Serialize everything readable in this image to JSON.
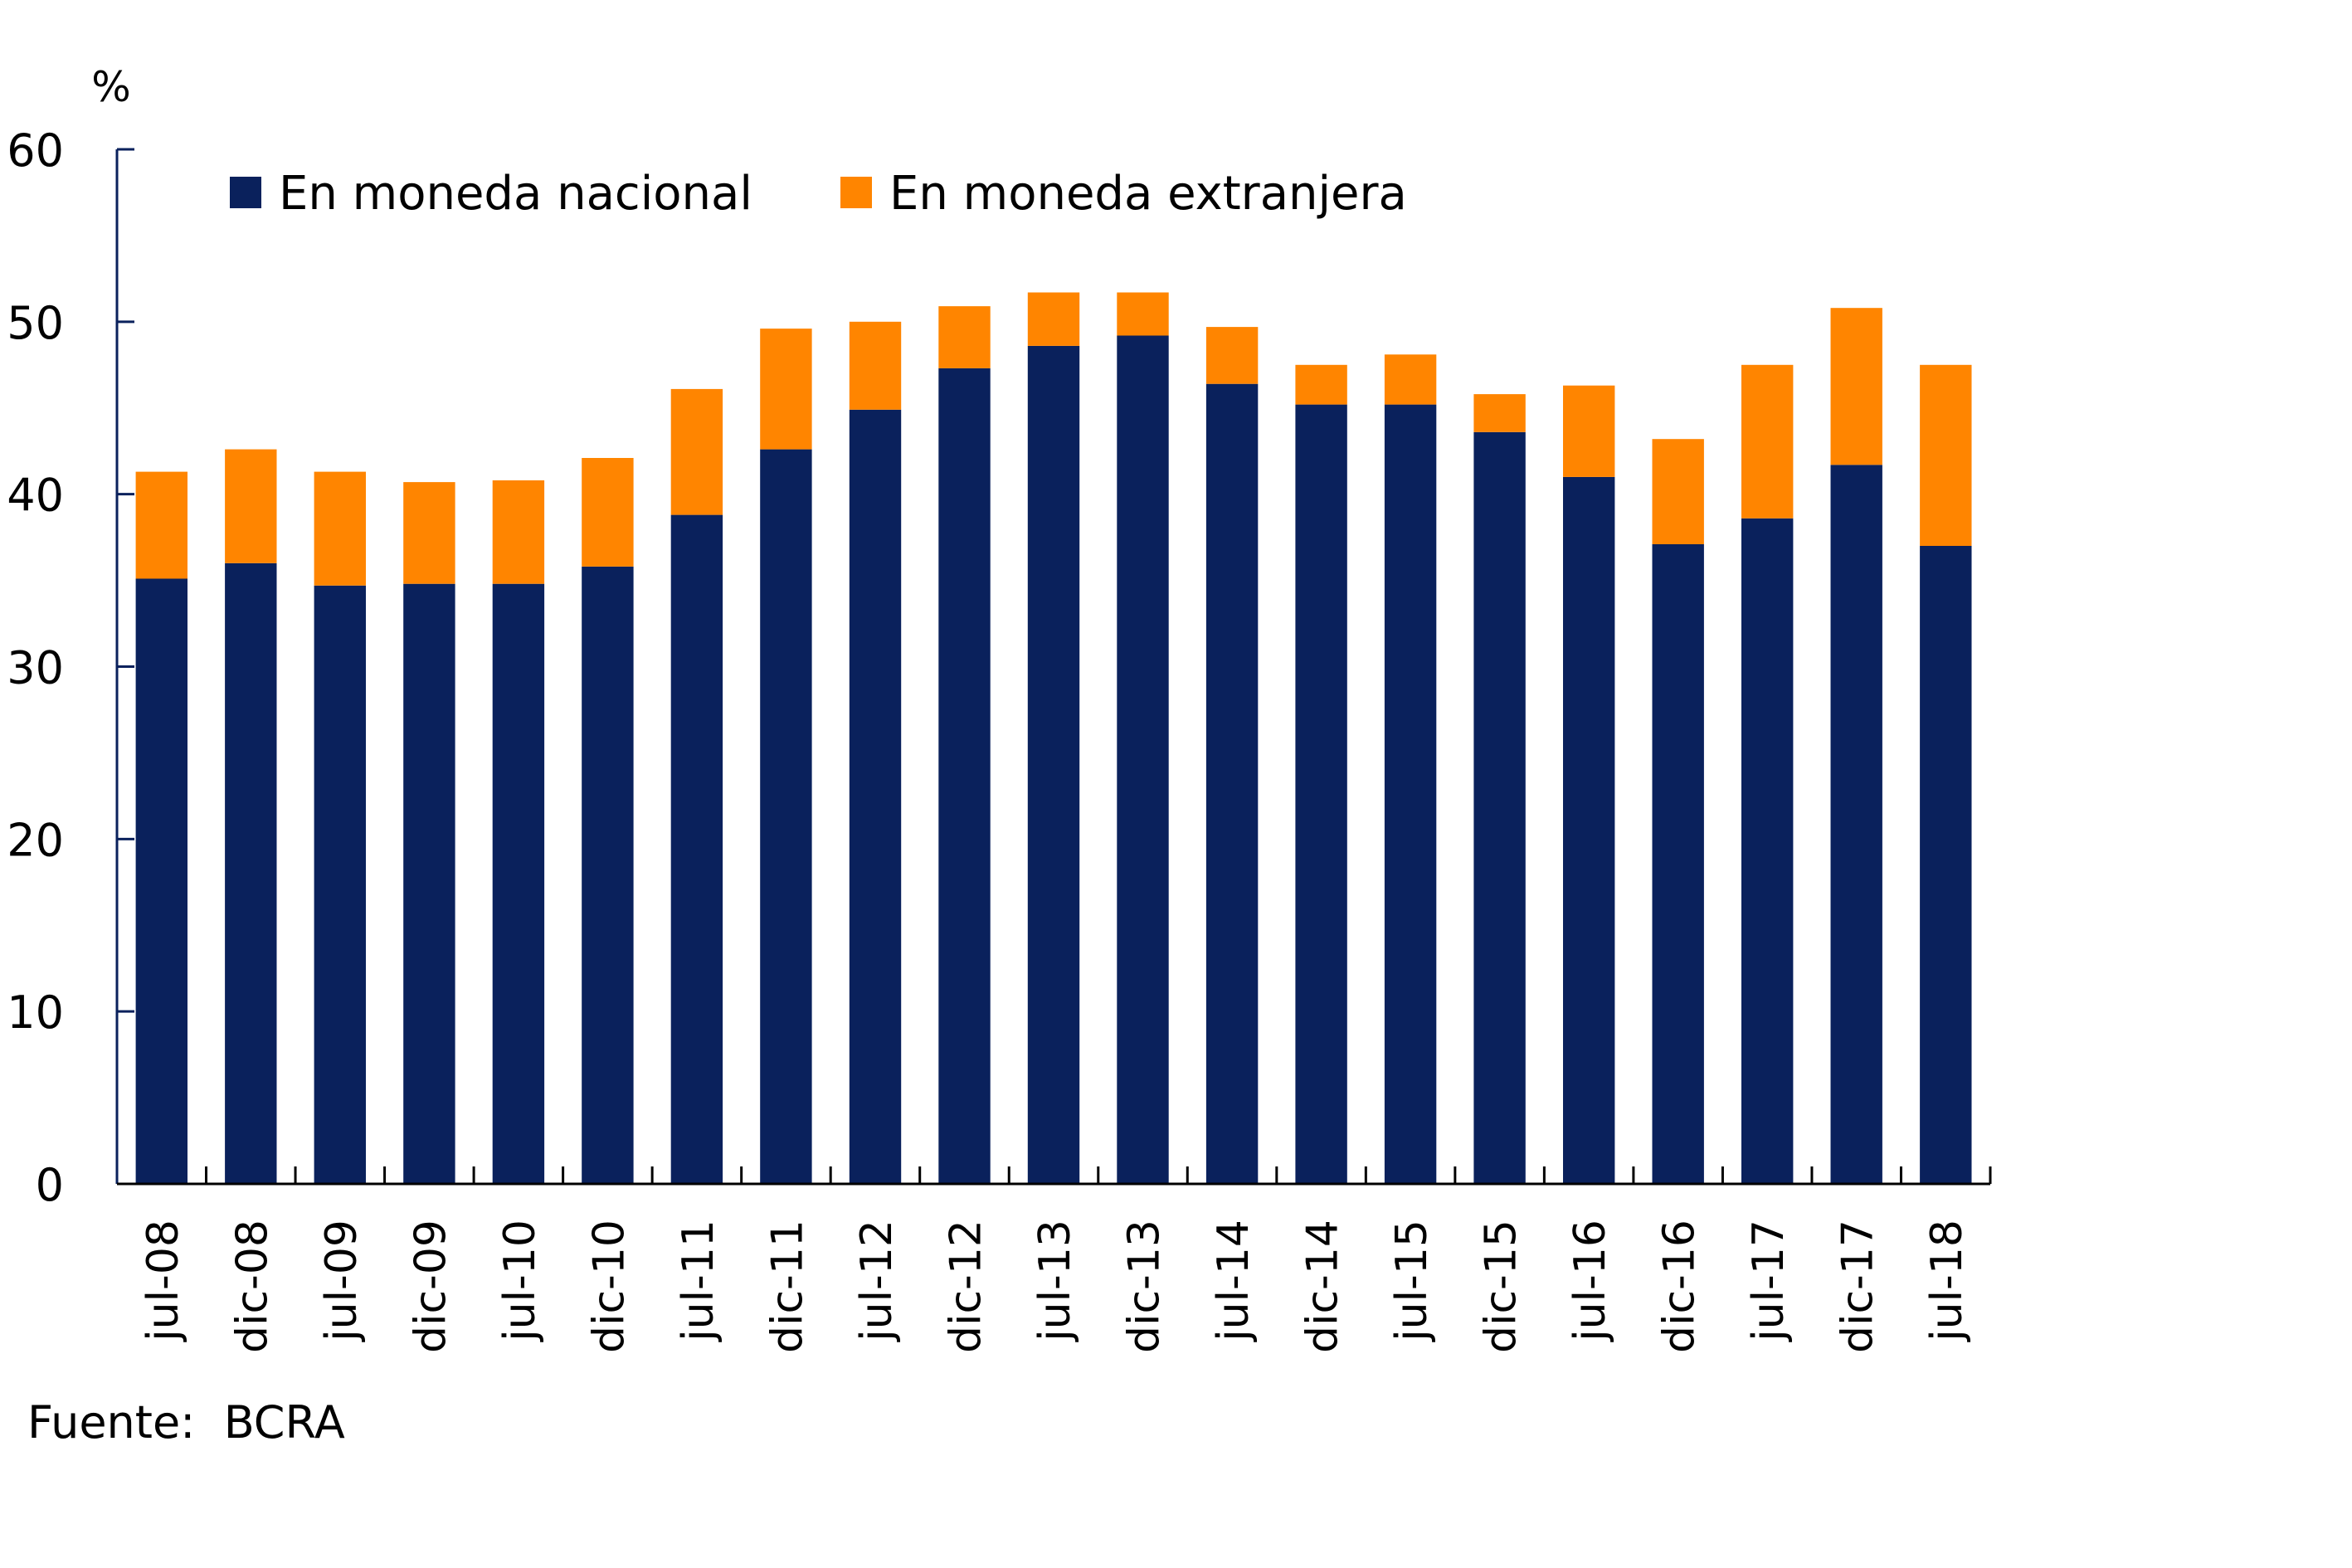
{
  "chart_data": {
    "type": "bar",
    "stacked": true,
    "title": "",
    "xlabel": "",
    "ylabel": "%",
    "ylim": [
      0,
      60
    ],
    "yticks": [
      0,
      10,
      20,
      30,
      40,
      50,
      60
    ],
    "grid": false,
    "legend_position": "top-left",
    "categories": [
      "jul-08",
      "dic-08",
      "jul-09",
      "dic-09",
      "jul-10",
      "dic-10",
      "jul-11",
      "dic-11",
      "jul-12",
      "dic-12",
      "jul-13",
      "dic-13",
      "jul-14",
      "dic-14",
      "jul-15",
      "dic-15",
      "jul-16",
      "dic-16",
      "jul-17",
      "dic-17",
      "jul-18"
    ],
    "series": [
      {
        "name": "En moneda nacional",
        "color": "#0A215C",
        "values": [
          35.1,
          36.0,
          34.7,
          34.8,
          34.8,
          35.8,
          38.8,
          42.6,
          44.9,
          47.3,
          48.6,
          49.2,
          46.4,
          45.2,
          45.2,
          43.6,
          41.0,
          37.1,
          38.6,
          41.7,
          37.0
        ]
      },
      {
        "name": "En moneda extranjera",
        "color": "#FF8500",
        "values": [
          6.2,
          6.6,
          6.6,
          5.9,
          6.0,
          6.3,
          7.3,
          7.0,
          5.1,
          3.6,
          3.1,
          2.5,
          3.3,
          2.3,
          2.9,
          2.2,
          5.3,
          6.1,
          8.9,
          9.1,
          10.5
        ]
      }
    ],
    "totals": [
      41.3,
      42.6,
      41.3,
      40.7,
      40.8,
      42.1,
      46.1,
      49.6,
      50.0,
      50.9,
      51.7,
      51.7,
      49.7,
      47.5,
      48.1,
      45.8,
      46.3,
      43.2,
      47.5,
      50.8,
      47.5
    ],
    "source": "Fuente:  BCRA"
  },
  "axis": {
    "unit_label": "%",
    "y_tick_labels": [
      "0",
      "10",
      "20",
      "30",
      "40",
      "50",
      "60"
    ]
  },
  "legend": {
    "items": [
      {
        "label": "En moneda nacional",
        "color": "#0A215C"
      },
      {
        "label": "En moneda extranjera",
        "color": "#FF8500"
      }
    ]
  },
  "footer": {
    "source": "Fuente:  BCRA"
  }
}
